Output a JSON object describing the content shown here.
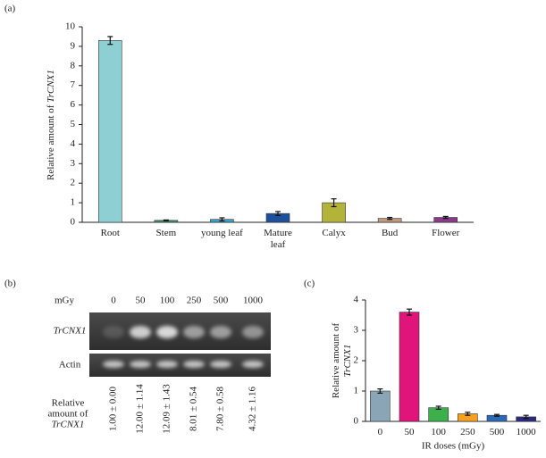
{
  "chart_data": [
    {
      "type": "bar",
      "panel": "(a)",
      "ylabel": [
        "Relative amount of ",
        "TrCNX1"
      ],
      "categories": [
        "Root",
        "Stem",
        "young leaf",
        "Mature leaf",
        "Calyx",
        "Bud",
        "Flower"
      ],
      "values": [
        9.3,
        0.1,
        0.15,
        0.45,
        1.0,
        0.2,
        0.25
      ],
      "error": [
        0.2,
        0.02,
        0.08,
        0.1,
        0.2,
        0.05,
        0.05
      ],
      "colors": [
        "#8ecfd4",
        "#3e8f6a",
        "#3aa0c8",
        "#1c4f9c",
        "#b3b33a",
        "#c09a7c",
        "#8b3a8b"
      ],
      "ylim": [
        0,
        10
      ],
      "yticks": [
        0,
        1,
        2,
        3,
        4,
        5,
        6,
        7,
        8,
        9,
        10
      ]
    },
    {
      "type": "bar",
      "panel": "(c)",
      "ylabel": [
        "Relative amount of",
        "TrCNX1"
      ],
      "xlabel": "IR doses (mGy)",
      "categories": [
        "0",
        "50",
        "100",
        "250",
        "500",
        "1000"
      ],
      "values": [
        1.0,
        3.6,
        0.45,
        0.25,
        0.2,
        0.15
      ],
      "error": [
        0.07,
        0.1,
        0.05,
        0.05,
        0.03,
        0.05
      ],
      "colors": [
        "#8aa5b5",
        "#e0147a",
        "#3cb04a",
        "#f5a020",
        "#2a6ab8",
        "#2a2a80"
      ],
      "ylim": [
        0,
        4
      ],
      "yticks": [
        0,
        1,
        2,
        3,
        4
      ]
    }
  ],
  "gel": {
    "panel": "(b)",
    "unit": "mGy",
    "doses": [
      "0",
      "50",
      "100",
      "250",
      "500",
      "1000"
    ],
    "rows": [
      "TrCNX1",
      "Actin"
    ],
    "relative_label": [
      "Relative",
      "amount of",
      "TrCNX1"
    ],
    "relative_values": [
      "1.00 ± 0.00",
      "12.00 ± 1.14",
      "12.09 ± 1.43",
      "8.01 ± 0.54",
      "7.80 ± 0.58",
      "4.32 ± 1.16"
    ]
  }
}
